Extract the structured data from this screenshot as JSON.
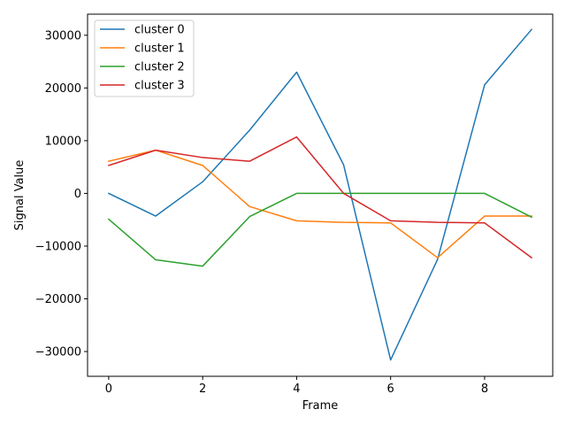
{
  "chart_data": {
    "type": "line",
    "title": "",
    "xlabel": "Frame",
    "ylabel": "Signal Value",
    "x": [
      0,
      1,
      2,
      3,
      4,
      5,
      6,
      7,
      8,
      9
    ],
    "xlim": [
      -0.45,
      9.45
    ],
    "ylim": [
      -34700,
      34000
    ],
    "xticks": [
      0,
      2,
      4,
      6,
      8
    ],
    "yticks": [
      -30000,
      -20000,
      -10000,
      0,
      10000,
      20000,
      30000
    ],
    "ytick_labels": [
      "−30000",
      "−20000",
      "−10000",
      "0",
      "10000",
      "20000",
      "30000"
    ],
    "grid": false,
    "legend_position": "upper-left",
    "series": [
      {
        "name": "cluster 0",
        "color": "#1f77b4",
        "values": [
          0,
          -4300,
          2200,
          12000,
          23000,
          5400,
          -31600,
          -12500,
          20600,
          31100
        ]
      },
      {
        "name": "cluster 1",
        "color": "#ff7f0e",
        "values": [
          6100,
          8200,
          5300,
          -2500,
          -5200,
          -5500,
          -5600,
          -12200,
          -4300,
          -4300
        ]
      },
      {
        "name": "cluster 2",
        "color": "#2ca02c",
        "values": [
          -4900,
          -12600,
          -13800,
          -4400,
          0,
          0,
          0,
          0,
          0,
          -4500
        ]
      },
      {
        "name": "cluster 3",
        "color": "#d62728",
        "values": [
          5300,
          8200,
          6800,
          6100,
          10700,
          0,
          -5200,
          -5500,
          -5600,
          -12200
        ]
      }
    ]
  }
}
